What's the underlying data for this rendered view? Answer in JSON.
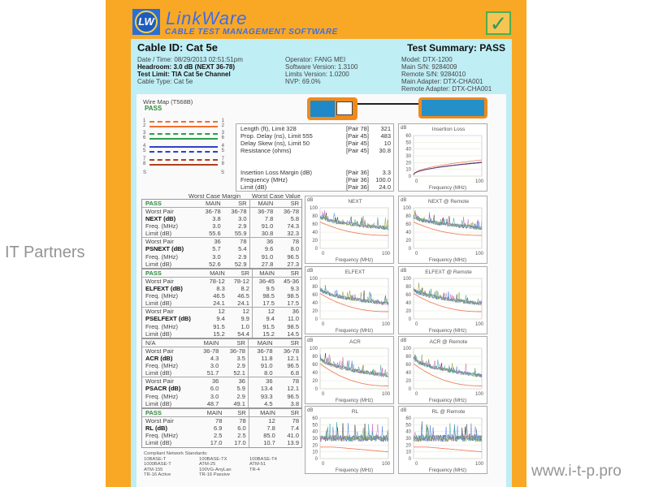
{
  "brand": {
    "logo_text": "LW",
    "name": "LinkWare",
    "subtitle": "CABLE TEST MANAGEMENT SOFTWARE",
    "pass_icon": "checkmark-icon"
  },
  "header": {
    "cable_id": "Cable ID: Cat 5e",
    "summary": "Test Summary: PASS",
    "col1": [
      "Date / Time: 08/29/2013 02:51:51pm",
      "Headroom: 3.0 dB (NEXT 36-78)",
      "Test Limit: TIA Cat 5e Channel",
      "Cable Type: Cat 5e"
    ],
    "col2": [
      "Operator: FANG  MEI",
      "Software Version: 1.3100",
      "Limits Version: 1.0200",
      "NVP: 69.0%"
    ],
    "col3": [
      "Model: DTX-1200",
      "Main S/N: 9284009",
      "Remote S/N: 9284010",
      "Main Adapter: DTX-CHA001",
      "Remote Adapter: DTX-CHA001"
    ]
  },
  "wiremap": {
    "title": "Wire Map (T568B)",
    "result": "PASS",
    "pins": [
      {
        "a": "1",
        "b": "1",
        "color": "#f07030",
        "dash": true
      },
      {
        "a": "2",
        "b": "2",
        "color": "#f07030",
        "dash": false
      },
      {
        "a": "3",
        "b": "3",
        "color": "#2e9d4a",
        "dash": true
      },
      {
        "a": "6",
        "b": "6",
        "color": "#2e9d4a",
        "dash": false
      },
      {
        "a": "4",
        "b": "4",
        "color": "#3040c8",
        "dash": false
      },
      {
        "a": "5",
        "b": "5",
        "color": "#3040c8",
        "dash": true
      },
      {
        "a": "7",
        "b": "7",
        "color": "#b04020",
        "dash": true
      },
      {
        "a": "8",
        "b": "8",
        "color": "#b04020",
        "dash": false
      },
      {
        "a": "S",
        "b": "S",
        "color": "none",
        "dash": false
      }
    ]
  },
  "length": [
    {
      "label": "Length (ft), Limit 328",
      "pair": "[Pair 78]",
      "value": "321"
    },
    {
      "label": "Prop. Delay (ns), Limit 555",
      "pair": "[Pair 45]",
      "value": "483"
    },
    {
      "label": "Delay Skew (ns), Limit 50",
      "pair": "[Pair 45]",
      "value": "10"
    },
    {
      "label": "Resistance (ohms)",
      "pair": "[Pair 45]",
      "value": "30.8"
    },
    {
      "label": "Insertion Loss Margin (dB)",
      "pair": "[Pair 36]",
      "value": "3.3"
    },
    {
      "label": "Frequency (MHz)",
      "pair": "[Pair 36]",
      "value": "100.0"
    },
    {
      "label": "Limit (dB)",
      "pair": "[Pair 36]",
      "value": "24.0"
    }
  ],
  "table_headers": {
    "margin": "Worst Case Margin",
    "value": "Worst Case Value"
  },
  "tables": [
    {
      "status": "PASS",
      "cols": [
        "MAIN",
        "SR",
        "MAIN",
        "SR"
      ],
      "groups": [
        {
          "name": "NEXT (dB)",
          "rows": [
            [
              "Worst Pair",
              "36-78",
              "36-78",
              "36-78",
              "36-78"
            ],
            [
              "NEXT (dB)",
              "3.8",
              "3.0",
              "7.8",
              "5.8"
            ],
            [
              "Freq. (MHz)",
              "3.0",
              "2.9",
              "91.0",
              "74.3"
            ],
            [
              "Limit (dB)",
              "55.6",
              "55.9",
              "30.8",
              "32.3"
            ]
          ]
        },
        {
          "name": "PSNEXT (dB)",
          "rows": [
            [
              "Worst Pair",
              "36",
              "78",
              "36",
              "78"
            ],
            [
              "PSNEXT (dB)",
              "5.7",
              "5.4",
              "9.6",
              "8.0"
            ],
            [
              "Freq. (MHz)",
              "3.0",
              "2.9",
              "91.0",
              "96.5"
            ],
            [
              "Limit (dB)",
              "52.6",
              "52.9",
              "27.8",
              "27.3"
            ]
          ]
        }
      ]
    },
    {
      "status": "PASS",
      "cols": [
        "MAIN",
        "SR",
        "MAIN",
        "SR"
      ],
      "groups": [
        {
          "name": "ELFEXT (dB)",
          "rows": [
            [
              "Worst Pair",
              "78-12",
              "78-12",
              "36-45",
              "45-36"
            ],
            [
              "ELFEXT (dB)",
              "8.3",
              "8.2",
              "9.5",
              "9.3"
            ],
            [
              "Freq. (MHz)",
              "46.5",
              "46.5",
              "98.5",
              "98.5"
            ],
            [
              "Limit (dB)",
              "24.1",
              "24.1",
              "17.5",
              "17.5"
            ]
          ]
        },
        {
          "name": "PSELFEXT (dB)",
          "rows": [
            [
              "Worst Pair",
              "12",
              "12",
              "12",
              "36"
            ],
            [
              "PSELFEXT (dB)",
              "9.4",
              "9.9",
              "9.4",
              "11.0"
            ],
            [
              "Freq. (MHz)",
              "91.5",
              "1.0",
              "91.5",
              "98.5"
            ],
            [
              "Limit (dB)",
              "15.2",
              "54.4",
              "15.2",
              "14.5"
            ]
          ]
        }
      ]
    },
    {
      "status": "N/A",
      "cols": [
        "MAIN",
        "SR",
        "MAIN",
        "SR"
      ],
      "groups": [
        {
          "name": "ACR (dB)",
          "rows": [
            [
              "Worst Pair",
              "36-78",
              "36-78",
              "36-78",
              "36-78"
            ],
            [
              "ACR (dB)",
              "4.3",
              "3.5",
              "11.8",
              "12.1"
            ],
            [
              "Freq. (MHz)",
              "3.0",
              "2.9",
              "91.0",
              "96.5"
            ],
            [
              "Limit (dB)",
              "51.7",
              "52.1",
              "8.0",
              "6.8"
            ]
          ]
        },
        {
          "name": "PSACR (dB)",
          "rows": [
            [
              "Worst Pair",
              "36",
              "36",
              "36",
              "78"
            ],
            [
              "PSACR (dB)",
              "6.0",
              "5.9",
              "13.4",
              "12.1"
            ],
            [
              "Freq. (MHz)",
              "3.0",
              "2.9",
              "93.3",
              "96.5"
            ],
            [
              "Limit (dB)",
              "48.7",
              "49.1",
              "4.5",
              "3.8"
            ]
          ]
        }
      ]
    },
    {
      "status": "PASS",
      "cols": [
        "MAIN",
        "SR",
        "MAIN",
        "SR"
      ],
      "groups": [
        {
          "name": "RL (dB)",
          "rows": [
            [
              "Worst Pair",
              "78",
              "78",
              "12",
              "78"
            ],
            [
              "RL (dB)",
              "6.9",
              "6.0",
              "7.8",
              "7.4"
            ],
            [
              "Freq. (MHz)",
              "2.5",
              "2.5",
              "85.0",
              "41.0"
            ],
            [
              "Limit (dB)",
              "17.0",
              "17.0",
              "10.7",
              "13.9"
            ]
          ]
        }
      ]
    }
  ],
  "standards": {
    "title": "Compliant Network Standards:",
    "items": [
      "10BASE-T",
      "100BASE-TX",
      "100BASE-T4",
      "1000BASE-T",
      "ATM-25",
      "ATM-51",
      "ATM-155",
      "100VG-AnyLan",
      "TR-4",
      "TR-16 Active",
      "TR-16 Passive"
    ]
  },
  "charts": [
    {
      "title": "Insertion Loss",
      "ylabel": "dB",
      "xlabel": "Frequency (MHz)",
      "yticks": [
        0,
        10,
        20,
        30,
        40,
        50,
        60
      ],
      "xticks": [
        "0",
        "100"
      ],
      "kind": "il",
      "limit_end": 24
    },
    {
      "title": "NEXT",
      "ylabel": "dB",
      "xlabel": "Frequency (MHz)",
      "yticks": [
        0,
        20,
        40,
        60,
        80,
        100
      ],
      "xticks": [
        "0",
        "100"
      ],
      "kind": "noise",
      "limit": [
        65,
        32
      ],
      "base": [
        80,
        50
      ]
    },
    {
      "title": "NEXT @ Remote",
      "ylabel": "dB",
      "xlabel": "Frequency (MHz)",
      "yticks": [
        0,
        20,
        40,
        60,
        80,
        100
      ],
      "xticks": [
        "0",
        "100"
      ],
      "kind": "noise",
      "limit": [
        65,
        32
      ],
      "base": [
        80,
        50
      ]
    },
    {
      "title": "ELFEXT",
      "ylabel": "dB",
      "xlabel": "Frequency (MHz)",
      "yticks": [
        0,
        20,
        40,
        60,
        80,
        100
      ],
      "xticks": [
        "0",
        "100"
      ],
      "kind": "noise",
      "limit": [
        63,
        18
      ],
      "base": [
        75,
        38
      ]
    },
    {
      "title": "ELFEXT @ Remote",
      "ylabel": "dB",
      "xlabel": "Frequency (MHz)",
      "yticks": [
        0,
        20,
        40,
        60,
        80,
        100
      ],
      "xticks": [
        "0",
        "100"
      ],
      "kind": "noise",
      "limit": [
        63,
        18
      ],
      "base": [
        75,
        38
      ]
    },
    {
      "title": "ACR",
      "ylabel": "dB",
      "xlabel": "Frequency (MHz)",
      "yticks": [
        0,
        20,
        40,
        60,
        80,
        100
      ],
      "xticks": [
        "0",
        "100"
      ],
      "kind": "noise",
      "limit": [
        62,
        7
      ],
      "base": [
        78,
        32
      ]
    },
    {
      "title": "ACR @ Remote",
      "ylabel": "dB",
      "xlabel": "Frequency (MHz)",
      "yticks": [
        0,
        20,
        40,
        60,
        80,
        100
      ],
      "xticks": [
        "0",
        "100"
      ],
      "kind": "noise",
      "limit": [
        62,
        7
      ],
      "base": [
        78,
        32
      ]
    },
    {
      "title": "RL",
      "ylabel": "dB",
      "xlabel": "Frequency (MHz)",
      "yticks": [
        0,
        10,
        20,
        30,
        40,
        50,
        60
      ],
      "xticks": [
        "0",
        "100"
      ],
      "kind": "rl",
      "limit": [
        17,
        10
      ],
      "base": [
        30,
        30
      ]
    },
    {
      "title": "RL @ Remote",
      "ylabel": "dB",
      "xlabel": "Frequency (MHz)",
      "yticks": [
        0,
        10,
        20,
        30,
        40,
        50,
        60
      ],
      "xticks": [
        "0",
        "100"
      ],
      "kind": "rl",
      "limit": [
        17,
        10
      ],
      "base": [
        30,
        30
      ]
    }
  ],
  "pair_colors": [
    "#3a3a3a",
    "#d060c0",
    "#5080e0",
    "#90a030",
    "#40a0a0"
  ],
  "limit_color": "#f08060",
  "watermark": {
    "main": "IT Partners",
    "url": "www.i-t-p.pro"
  }
}
